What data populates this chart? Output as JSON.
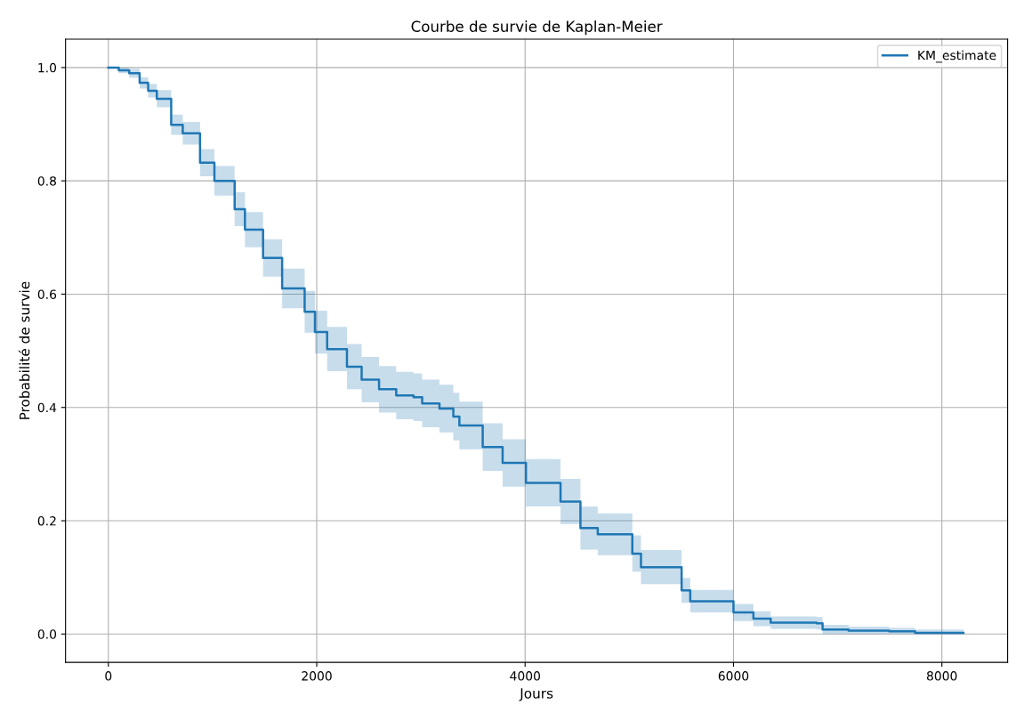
{
  "chart_data": {
    "type": "step",
    "title": "Courbe de survie de Kaplan-Meier",
    "xlabel": "Jours",
    "ylabel": "Probabilité de survie",
    "x": [
      0,
      100,
      200,
      300,
      382,
      465,
      603,
      714,
      880,
      1018,
      1212,
      1311,
      1485,
      1668,
      1884,
      1983,
      2100,
      2290,
      2431,
      2598,
      2763,
      2929,
      3012,
      3178,
      3311,
      3369,
      3593,
      3784,
      4008,
      4340,
      4531,
      4697,
      5029,
      5112,
      5502,
      5585,
      6000,
      6191,
      6357,
      6797,
      6855,
      7104,
      7494,
      7743,
      8207
    ],
    "series": [
      {
        "name": "KM_estimate",
        "color": "#1f77b4",
        "values": [
          1.0,
          0.995,
          0.99,
          0.973,
          0.959,
          0.945,
          0.899,
          0.884,
          0.832,
          0.8,
          0.75,
          0.714,
          0.664,
          0.61,
          0.569,
          0.533,
          0.503,
          0.472,
          0.449,
          0.432,
          0.421,
          0.418,
          0.407,
          0.398,
          0.384,
          0.368,
          0.33,
          0.302,
          0.267,
          0.234,
          0.187,
          0.176,
          0.142,
          0.118,
          0.077,
          0.058,
          0.038,
          0.027,
          0.02,
          0.019,
          0.008,
          0.006,
          0.005,
          0.002,
          0.002
        ],
        "lower": [
          1.0,
          0.99,
          0.982,
          0.963,
          0.947,
          0.93,
          0.881,
          0.864,
          0.808,
          0.774,
          0.72,
          0.683,
          0.631,
          0.575,
          0.532,
          0.495,
          0.464,
          0.432,
          0.409,
          0.391,
          0.379,
          0.376,
          0.365,
          0.356,
          0.342,
          0.326,
          0.288,
          0.26,
          0.225,
          0.194,
          0.149,
          0.139,
          0.11,
          0.088,
          0.055,
          0.038,
          0.023,
          0.014,
          0.009,
          0.008,
          0.0,
          0.0,
          0.0,
          0.0,
          0.0
        ],
        "upper": [
          1.0,
          1.0,
          0.998,
          0.983,
          0.971,
          0.96,
          0.917,
          0.904,
          0.856,
          0.826,
          0.78,
          0.745,
          0.697,
          0.645,
          0.606,
          0.571,
          0.542,
          0.512,
          0.489,
          0.473,
          0.463,
          0.46,
          0.449,
          0.44,
          0.426,
          0.41,
          0.372,
          0.344,
          0.309,
          0.274,
          0.225,
          0.213,
          0.174,
          0.148,
          0.099,
          0.078,
          0.053,
          0.04,
          0.031,
          0.03,
          0.016,
          0.013,
          0.011,
          0.008,
          0.008
        ]
      }
    ],
    "xlim": [
      -411,
      8631
    ],
    "ylim": [
      -0.05,
      1.05
    ],
    "xticks": [
      0,
      2000,
      4000,
      6000,
      8000
    ],
    "yticks": [
      {
        "value": 0,
        "label": "0.0"
      },
      {
        "value": 0.2,
        "label": "0.2"
      },
      {
        "value": 0.4,
        "label": "0.4"
      },
      {
        "value": 0.6,
        "label": "0.6"
      },
      {
        "value": 0.8,
        "label": "0.8"
      },
      {
        "value": 1.0,
        "label": "1.0"
      }
    ],
    "grid": true,
    "legend": "top right"
  }
}
